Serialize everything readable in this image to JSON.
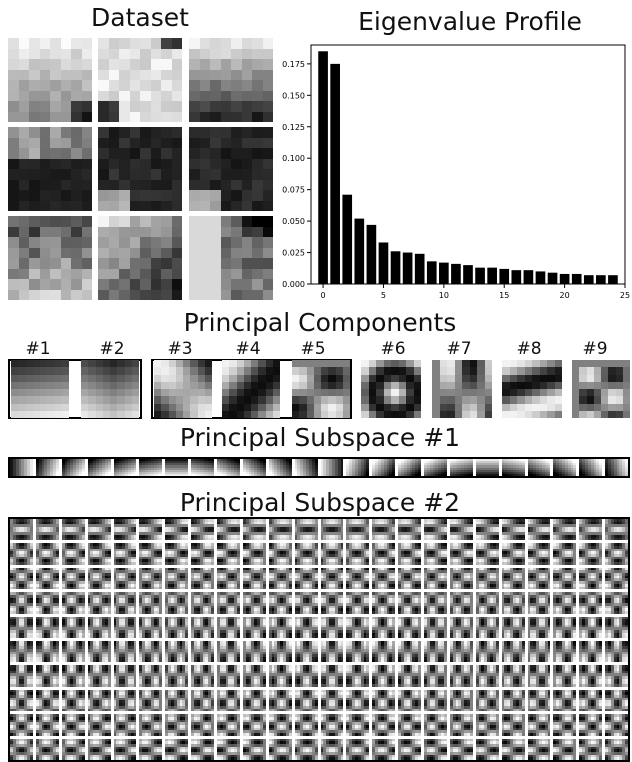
{
  "titles": {
    "dataset": "Dataset",
    "eigen": "Eigenvalue Profile",
    "components": "Principal Components",
    "subspace1": "Principal Subspace #1",
    "subspace2": "Principal Subspace #2"
  },
  "component_labels": [
    "#1",
    "#2",
    "#3",
    "#4",
    "#5",
    "#6",
    "#7",
    "#8",
    "#9"
  ],
  "dataset_patches": [
    {
      "kind": "lightgrad",
      "seed": 3
    },
    {
      "kind": "speckle-light",
      "seed": 7
    },
    {
      "kind": "darkbottom",
      "seed": 11
    },
    {
      "kind": "darktop",
      "seed": 13
    },
    {
      "kind": "dark",
      "seed": 17
    },
    {
      "kind": "dark",
      "seed": 19
    },
    {
      "kind": "midmix",
      "seed": 23
    },
    {
      "kind": "diag",
      "seed": 29
    },
    {
      "kind": "blocky",
      "seed": 31
    }
  ],
  "chart_data": {
    "type": "bar",
    "title": "Eigenvalue Profile",
    "xlabel": "",
    "ylabel": "",
    "x": [
      0,
      1,
      2,
      3,
      4,
      5,
      6,
      7,
      8,
      9,
      10,
      11,
      12,
      13,
      14,
      15,
      16,
      17,
      18,
      19,
      20,
      21,
      22,
      23,
      24
    ],
    "values": [
      0.185,
      0.175,
      0.071,
      0.052,
      0.047,
      0.033,
      0.026,
      0.025,
      0.024,
      0.018,
      0.017,
      0.016,
      0.015,
      0.013,
      0.013,
      0.012,
      0.011,
      0.011,
      0.01,
      0.009,
      0.008,
      0.008,
      0.007,
      0.007,
      0.007
    ],
    "xlim": [
      -1,
      25
    ],
    "ylim": [
      0,
      0.19
    ],
    "xticks": [
      0,
      5,
      10,
      15,
      20,
      25
    ],
    "xtick_labels": [
      "0",
      "5",
      "10",
      "15",
      "20",
      "25"
    ],
    "yticks": [
      0,
      0.025,
      0.05,
      0.075,
      0.1,
      0.125,
      0.15,
      0.175
    ],
    "ytick_labels": [
      "0.000",
      "0.025",
      "0.050",
      "0.075",
      "0.100",
      "0.125",
      "0.150",
      "0.175"
    ],
    "bar_color": "#000000"
  },
  "subspace1": {
    "count": 24
  },
  "subspace2": {
    "cols": 24,
    "rows": 10
  }
}
